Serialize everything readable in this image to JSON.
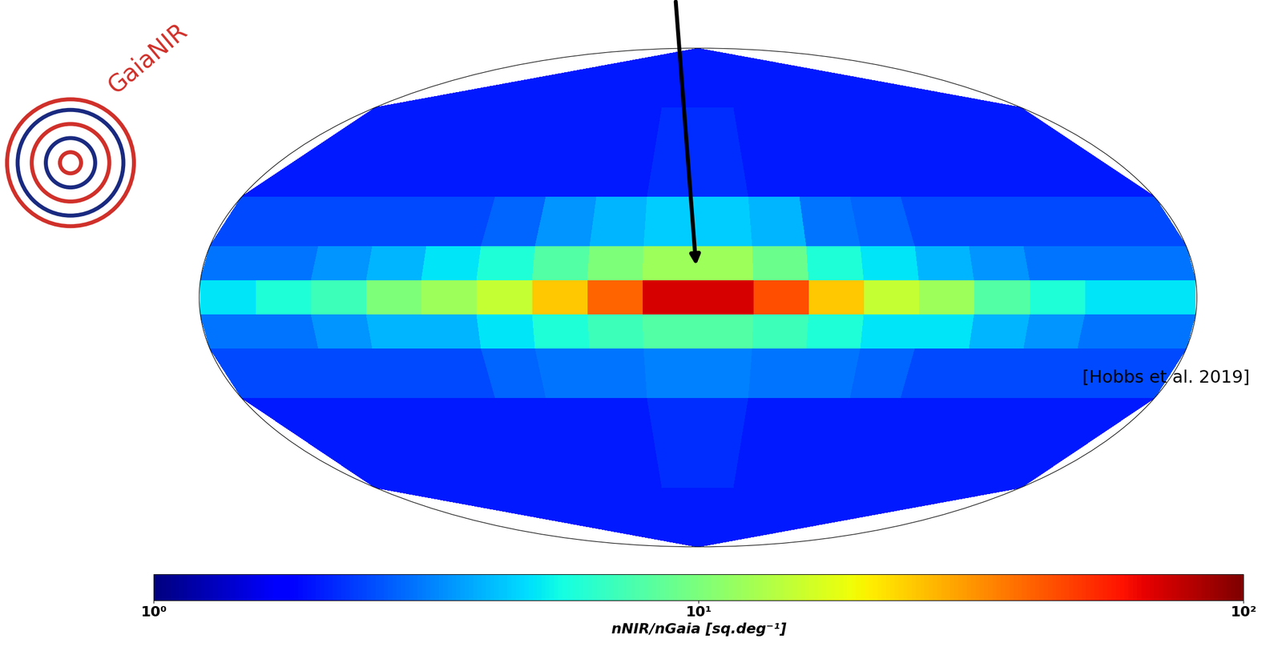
{
  "chart_data": {
    "type": "heatmap",
    "log": true,
    "tick_labels": false,
    "colorbar_label": "nNIR/nGaia [sq.deg⁻¹]",
    "colorbar_range": [
      1,
      100
    ],
    "colorbar_ticks": [
      {
        "value": 1,
        "label": "10⁰"
      },
      {
        "value": 10,
        "label": "10¹"
      },
      {
        "value": 100,
        "label": "10²"
      }
    ],
    "annotations": [
      "[Hobbs et al. 2019]",
      "GaiaNIR"
    ],
    "lon_edges": [
      -180,
      -160,
      -140,
      -120,
      -100,
      -80,
      -60,
      -40,
      -20,
      0,
      20,
      40,
      60,
      80,
      100,
      120,
      140,
      160,
      180
    ],
    "lat_edges": [
      -90,
      -60,
      -30,
      -15,
      -5,
      5,
      15,
      30,
      60,
      90
    ],
    "cells": [
      [
        2,
        2,
        2,
        2,
        2,
        2,
        2,
        2,
        2,
        2,
        2,
        2,
        2,
        2,
        2,
        2,
        2,
        2
      ],
      [
        2,
        2,
        2,
        2,
        2,
        2,
        2,
        2,
        2.2,
        2.2,
        2,
        2,
        2,
        2,
        2,
        2,
        2,
        2
      ],
      [
        2.5,
        2.5,
        2.5,
        2.5,
        2.5,
        2.8,
        3,
        3,
        3.2,
        3.2,
        3,
        3,
        2.8,
        2.5,
        2.5,
        2.5,
        2.5,
        2.5
      ],
      [
        3,
        3,
        3.5,
        4,
        4,
        5,
        6,
        7,
        8,
        8,
        7,
        6,
        5,
        5,
        4,
        3.5,
        3,
        3
      ],
      [
        5,
        6,
        7,
        10,
        12,
        15,
        25,
        40,
        70,
        70,
        45,
        25,
        15,
        12,
        8,
        6,
        5,
        5
      ],
      [
        3,
        3,
        3.5,
        4,
        5,
        6,
        8,
        10,
        12,
        12,
        9,
        6,
        5,
        4,
        3.5,
        3,
        3,
        3
      ],
      [
        2.5,
        2.5,
        2.5,
        2.5,
        2.5,
        2.8,
        3.5,
        4,
        4.5,
        4.5,
        4,
        3,
        2.8,
        2.5,
        2.5,
        2.5,
        2.5,
        2.5
      ],
      [
        2,
        2,
        2,
        2,
        2,
        2,
        2,
        2,
        2.2,
        2.2,
        2,
        2,
        2,
        2,
        2,
        2,
        2,
        2
      ],
      [
        2,
        2,
        2,
        2,
        2,
        2,
        2,
        2,
        2,
        2,
        2,
        2,
        2,
        2,
        2,
        2,
        2,
        2
      ]
    ]
  }
}
